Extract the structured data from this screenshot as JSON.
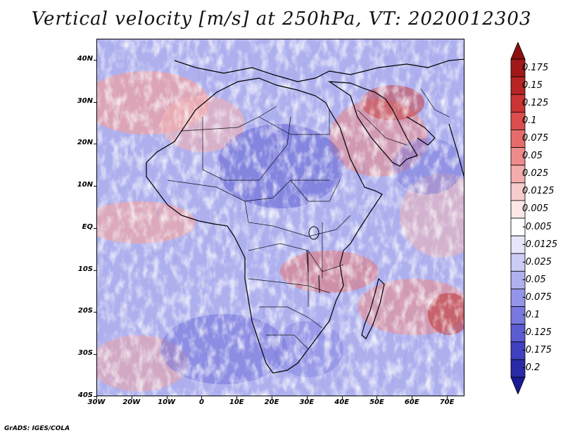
{
  "title": "Vertical velocity [m/s] at 250hPa, VT: 2020012303",
  "credit": "GrADS: IGES/COLA",
  "map": {
    "lon_range": [
      -30,
      75
    ],
    "lat_range": [
      -40,
      45
    ],
    "lat_ticks": [
      {
        "value": 40,
        "label": "40N"
      },
      {
        "value": 30,
        "label": "30N"
      },
      {
        "value": 20,
        "label": "20N"
      },
      {
        "value": 10,
        "label": "10N"
      },
      {
        "value": 0,
        "label": "EQ"
      },
      {
        "value": -10,
        "label": "10S"
      },
      {
        "value": -20,
        "label": "20S"
      },
      {
        "value": -30,
        "label": "30S"
      },
      {
        "value": -40,
        "label": "40S"
      }
    ],
    "lon_ticks": [
      {
        "value": -30,
        "label": "30W"
      },
      {
        "value": -20,
        "label": "20W"
      },
      {
        "value": -10,
        "label": "10W"
      },
      {
        "value": 0,
        "label": "0"
      },
      {
        "value": 10,
        "label": "10E"
      },
      {
        "value": 20,
        "label": "20E"
      },
      {
        "value": 30,
        "label": "30E"
      },
      {
        "value": 40,
        "label": "40E"
      },
      {
        "value": 50,
        "label": "50E"
      },
      {
        "value": 60,
        "label": "60E"
      },
      {
        "value": 70,
        "label": "70E"
      }
    ]
  },
  "colorbar": {
    "levels": [
      {
        "label": "0.175",
        "color": "#a01818"
      },
      {
        "label": "0.15",
        "color": "#b82424"
      },
      {
        "label": "0.125",
        "color": "#cc3434"
      },
      {
        "label": "0.1",
        "color": "#dc4e4e"
      },
      {
        "label": "0.075",
        "color": "#e66c6c"
      },
      {
        "label": "0.05",
        "color": "#ee8c8c"
      },
      {
        "label": "0.025",
        "color": "#f4acac"
      },
      {
        "label": "0.0125",
        "color": "#f8cccc"
      },
      {
        "label": "0.005",
        "color": "#fce6e6"
      },
      {
        "label": "-0.005",
        "color": "#ffffff"
      },
      {
        "label": "-0.0125",
        "color": "#e6e6fa"
      },
      {
        "label": "-0.025",
        "color": "#ccccf6"
      },
      {
        "label": "-0.05",
        "color": "#b0b0f0"
      },
      {
        "label": "-0.075",
        "color": "#9494e8"
      },
      {
        "label": "-0.1",
        "color": "#7878de"
      },
      {
        "label": "-0.125",
        "color": "#5c5cd2"
      },
      {
        "label": "-0.175",
        "color": "#4040c0"
      },
      {
        "label": "-0.2",
        "color": "#2a2aa8"
      }
    ],
    "top_arrow_color": "#8c1010",
    "bottom_arrow_color": "#1a1a96"
  }
}
